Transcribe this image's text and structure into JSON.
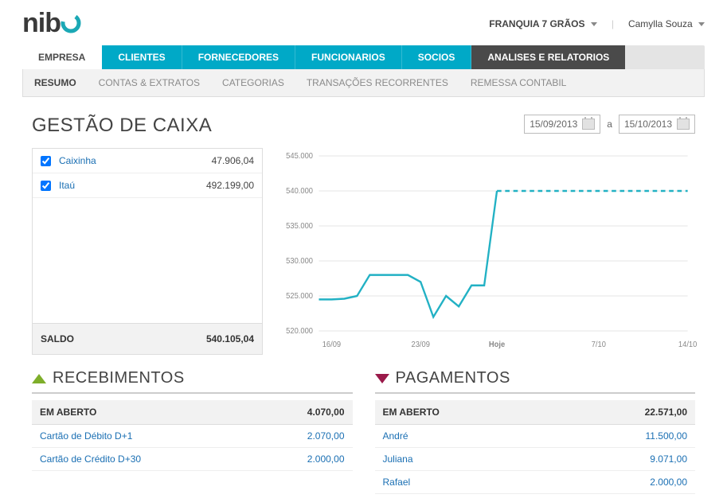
{
  "header": {
    "brand": "nib",
    "org_name": "FRANQUIA 7 GRÃOS",
    "user_name": "Camylla Souza"
  },
  "main_tabs": [
    {
      "key": "empresa",
      "label": "EMPRESA"
    },
    {
      "key": "clientes",
      "label": "CLIENTES"
    },
    {
      "key": "fornecedores",
      "label": "FORNECEDORES"
    },
    {
      "key": "funcionarios",
      "label": "FUNCIONARIOS"
    },
    {
      "key": "socios",
      "label": "SOCIOS"
    },
    {
      "key": "analises",
      "label": "ANALISES E RELATORIOS"
    }
  ],
  "sub_tabs": [
    {
      "label": "RESUMO",
      "active": true
    },
    {
      "label": "CONTAS & EXTRATOS"
    },
    {
      "label": "CATEGORIAS"
    },
    {
      "label": "TRANSAÇÕES RECORRENTES"
    },
    {
      "label": "REMESSA CONTABIL"
    }
  ],
  "page": {
    "title": "GESTÃO DE CAIXA",
    "date_from": "15/09/2013",
    "date_to": "15/10/2013",
    "date_sep": "a"
  },
  "accounts": {
    "items": [
      {
        "name": "Caixinha",
        "value": "47.906,04",
        "checked": true
      },
      {
        "name": "Itaú",
        "value": "492.199,00",
        "checked": true
      }
    ],
    "saldo_label": "SALDO",
    "saldo_value": "540.105,04"
  },
  "chart": {
    "type": "line",
    "line_color": "#22b1c4",
    "line_width": 2.5,
    "dashed_after_index": 11,
    "grid_color": "#e6e6e6",
    "background_color": "#ffffff",
    "ylim": [
      520000,
      545000
    ],
    "ytick_step": 5000,
    "ytick_labels": [
      "520.000",
      "525.000",
      "530.000",
      "535.000",
      "540.000",
      "545.000"
    ],
    "x_labels": [
      {
        "x": 1,
        "label": "16/09"
      },
      {
        "x": 8,
        "label": "23/09"
      },
      {
        "x": 14,
        "label": "Hoje",
        "bold": true
      },
      {
        "x": 22,
        "label": "7/10"
      },
      {
        "x": 29,
        "label": "14/10"
      }
    ],
    "points": [
      {
        "x": 0,
        "y": 524500
      },
      {
        "x": 1,
        "y": 524500
      },
      {
        "x": 2,
        "y": 524600
      },
      {
        "x": 3,
        "y": 525000
      },
      {
        "x": 4,
        "y": 528000
      },
      {
        "x": 5,
        "y": 528000
      },
      {
        "x": 6,
        "y": 528000
      },
      {
        "x": 7,
        "y": 528000
      },
      {
        "x": 8,
        "y": 527000
      },
      {
        "x": 9,
        "y": 522000
      },
      {
        "x": 10,
        "y": 525000
      },
      {
        "x": 11,
        "y": 523500
      },
      {
        "x": 12,
        "y": 526500
      },
      {
        "x": 13,
        "y": 526500
      },
      {
        "x": 14,
        "y": 540000
      },
      {
        "x": 15,
        "y": 540000
      },
      {
        "x": 16,
        "y": 540000
      },
      {
        "x": 17,
        "y": 540000
      },
      {
        "x": 18,
        "y": 540000
      },
      {
        "x": 19,
        "y": 540000
      },
      {
        "x": 20,
        "y": 540000
      },
      {
        "x": 21,
        "y": 540000
      },
      {
        "x": 22,
        "y": 540000
      },
      {
        "x": 23,
        "y": 540000
      },
      {
        "x": 24,
        "y": 540000
      },
      {
        "x": 25,
        "y": 540000
      },
      {
        "x": 26,
        "y": 540000
      },
      {
        "x": 27,
        "y": 540000
      },
      {
        "x": 28,
        "y": 540000
      },
      {
        "x": 29,
        "y": 540000
      }
    ]
  },
  "recebimentos": {
    "title": "RECEBIMENTOS",
    "open_label": "EM ABERTO",
    "open_total": "4.070,00",
    "rows": [
      {
        "label": "Cartão de Débito D+1",
        "value": "2.070,00"
      },
      {
        "label": "Cartão de Crédito D+30",
        "value": "2.000,00"
      }
    ]
  },
  "pagamentos": {
    "title": "PAGAMENTOS",
    "open_label": "EM ABERTO",
    "open_total": "22.571,00",
    "rows": [
      {
        "label": "André",
        "value": "11.500,00"
      },
      {
        "label": "Juliana",
        "value": "9.071,00"
      },
      {
        "label": "Rafael",
        "value": "2.000,00"
      }
    ]
  },
  "colors": {
    "primary": "#00a9c7",
    "dark_tab": "#4a4a4a",
    "green": "#7eae2a",
    "wine": "#9a1a4a",
    "link": "#1a6fb3"
  }
}
